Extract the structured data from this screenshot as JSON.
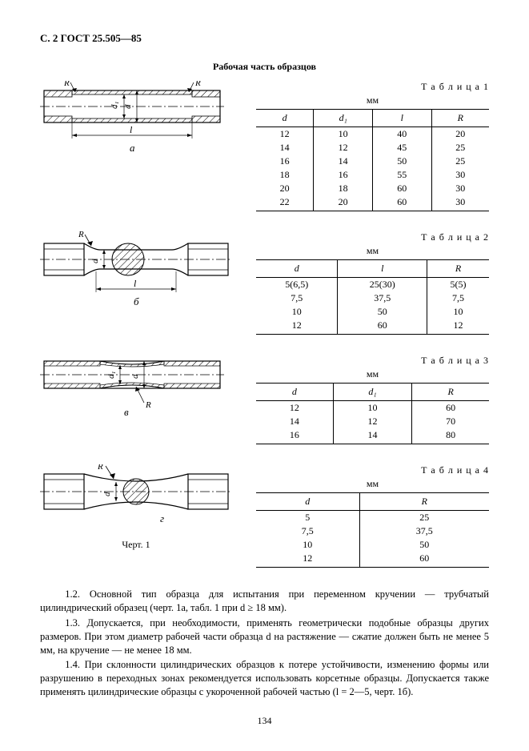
{
  "header": "С. 2 ГОСТ 25.505—85",
  "section_title": "Рабочая часть образцов",
  "unit": "мм",
  "tables": {
    "t1": {
      "label": "Т а б л и ц а  1",
      "headers": [
        "d",
        "d₁",
        "l",
        "R"
      ],
      "rows": [
        [
          "12",
          "10",
          "40",
          "20"
        ],
        [
          "14",
          "12",
          "45",
          "25"
        ],
        [
          "16",
          "14",
          "50",
          "25"
        ],
        [
          "18",
          "16",
          "55",
          "30"
        ],
        [
          "20",
          "18",
          "60",
          "30"
        ],
        [
          "22",
          "20",
          "60",
          "30"
        ]
      ]
    },
    "t2": {
      "label": "Т а б л и ц а  2",
      "headers": [
        "d",
        "l",
        "R"
      ],
      "rows": [
        [
          "5(6,5)",
          "25(30)",
          "5(5)"
        ],
        [
          "7,5",
          "37,5",
          "7,5"
        ],
        [
          "10",
          "50",
          "10"
        ],
        [
          "12",
          "60",
          "12"
        ]
      ]
    },
    "t3": {
      "label": "Т а б л и ц а  3",
      "headers": [
        "d",
        "d₁",
        "R"
      ],
      "rows": [
        [
          "12",
          "10",
          "60"
        ],
        [
          "14",
          "12",
          "70"
        ],
        [
          "16",
          "14",
          "80"
        ]
      ]
    },
    "t4": {
      "label": "Т а б л и ц а  4",
      "headers": [
        "d",
        "R"
      ],
      "rows": [
        [
          "5",
          "25"
        ],
        [
          "7,5",
          "37,5"
        ],
        [
          "10",
          "50"
        ],
        [
          "12",
          "60"
        ]
      ]
    }
  },
  "figs": {
    "a": "а",
    "b": "б",
    "v": "в",
    "g": "г",
    "caption": "Черт. 1"
  },
  "paras": {
    "p1": "1.2. Основной тип образца для испытания при переменном кручении — трубчатый цилиндрический образец (черт. 1а, табл. 1 при d ≥ 18 мм).",
    "p2": "1.3. Допускается, при необходимости, применять геометрически подобные образцы других размеров. При этом диаметр рабочей части образца d на растяжение — сжатие должен быть не менее 5 мм, на кручение — не менее 18 мм.",
    "p3": "1.4. При склонности цилиндрических образцов к потере устойчивости, изменению формы или разрушению в переходных зонах рекомендуется использовать корсетные образцы. Допускается также применять цилиндрические образцы с укороченной рабочей частью (l = 2—5, черт. 1б)."
  },
  "page_num": "134",
  "style": {
    "stroke": "#000",
    "hatch_spacing": 5,
    "bg": "#fff"
  }
}
